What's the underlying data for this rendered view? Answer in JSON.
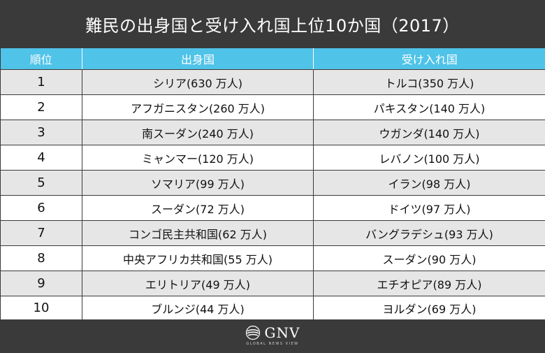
{
  "title": "難民の出身国と受け入れ国上位10か国（2017）",
  "table": {
    "headers": [
      "順位",
      "出身国",
      "受け入れ国"
    ],
    "rows": [
      {
        "rank": "1",
        "origin": "シリア(630 万人)",
        "host": "トルコ(350 万人)"
      },
      {
        "rank": "2",
        "origin": "アフガニスタン(260 万人)",
        "host": "パキスタン(140 万人)"
      },
      {
        "rank": "3",
        "origin": "南スーダン(240 万人)",
        "host": "ウガンダ(140 万人)"
      },
      {
        "rank": "4",
        "origin": "ミャンマー(120 万人)",
        "host": "レバノン(100 万人)"
      },
      {
        "rank": "5",
        "origin": "ソマリア(99 万人)",
        "host": "イラン(98 万人)"
      },
      {
        "rank": "6",
        "origin": "スーダン(72 万人)",
        "host": "ドイツ(97 万人)"
      },
      {
        "rank": "7",
        "origin": "コンゴ民主共和国(62 万人)",
        "host": "バングラデシュ(93 万人)"
      },
      {
        "rank": "8",
        "origin": "中央アフリカ共和国(55 万人)",
        "host": "スーダン(90 万人)"
      },
      {
        "rank": "9",
        "origin": "エリトリア(49 万人)",
        "host": "エチオピア(89 万人)"
      },
      {
        "rank": "10",
        "origin": "ブルンジ(44 万人)",
        "host": "ヨルダン(69 万人)"
      }
    ]
  },
  "footer": {
    "logo_text": "GNV",
    "logo_subtext": "GLOBAL NEWS VIEW",
    "logo_icon": "globe-swirl-icon"
  },
  "colors": {
    "background": "#3a3a3a",
    "header_accent": "#4fc3e8",
    "row_alt": "#e6e6e6",
    "row_plain": "#ffffff"
  }
}
